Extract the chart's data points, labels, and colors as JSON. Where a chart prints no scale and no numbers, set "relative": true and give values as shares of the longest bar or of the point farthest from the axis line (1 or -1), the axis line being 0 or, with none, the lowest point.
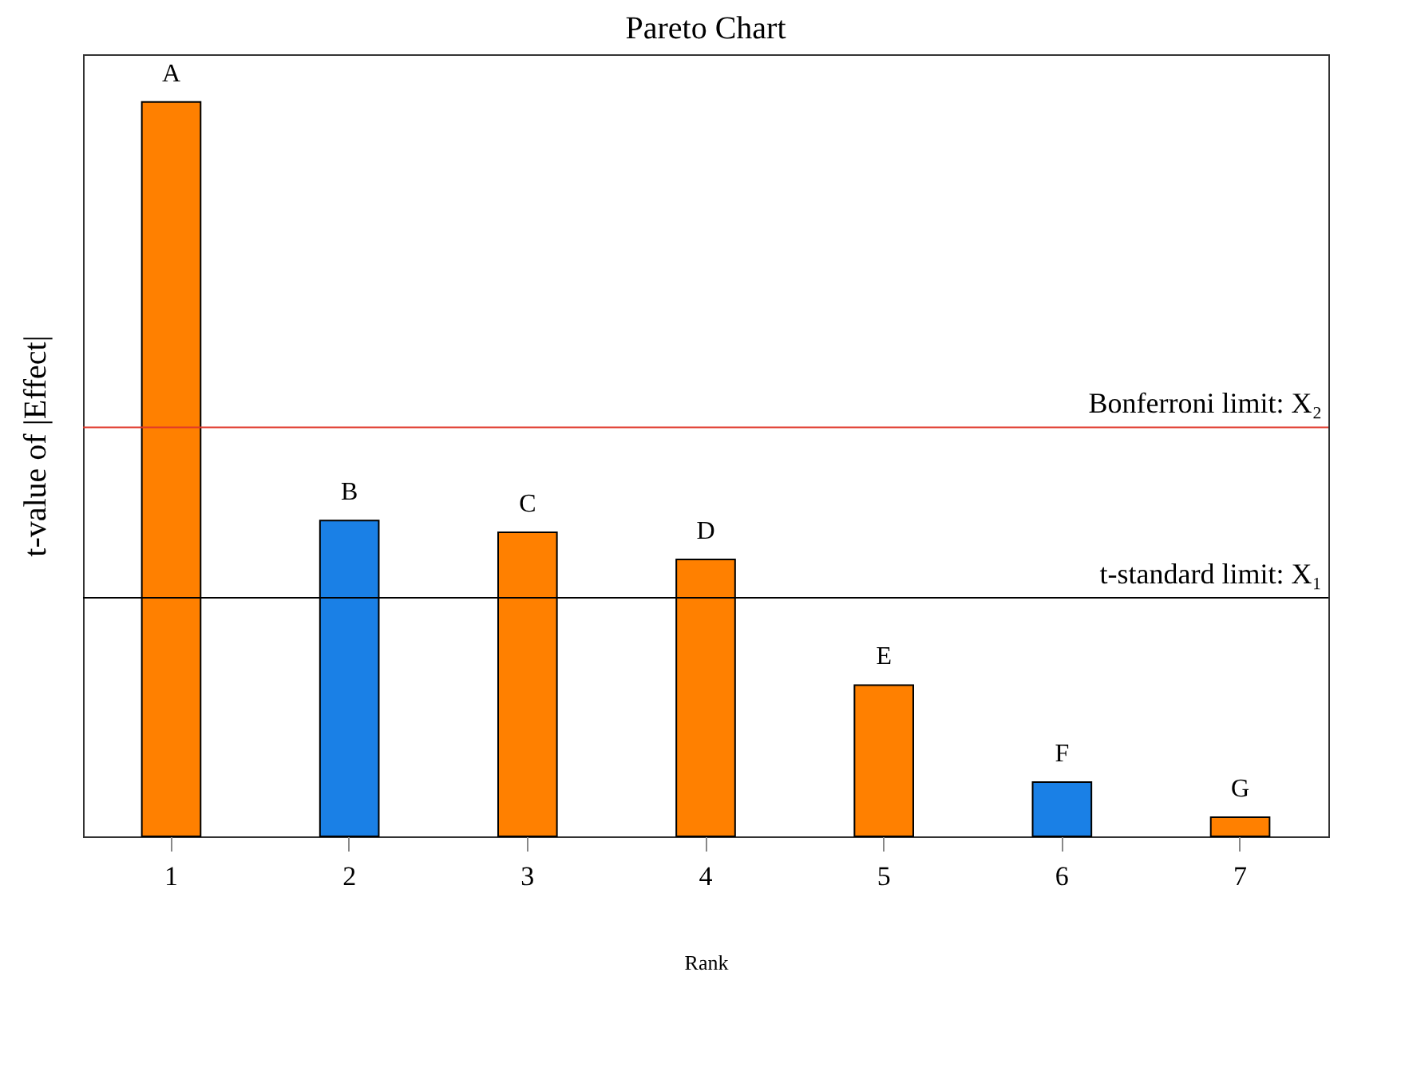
{
  "chart_data": {
    "type": "bar",
    "title": "Pareto Chart",
    "xlabel": "Rank",
    "ylabel": "t-value of |Effect|",
    "relative": true,
    "categories": [
      "1",
      "2",
      "3",
      "4",
      "5",
      "6",
      "7"
    ],
    "values": [
      1,
      0.43,
      0.414,
      0.377,
      0.206,
      0.074,
      0.026
    ],
    "colors": [
      "#ff8000",
      "#1a80e6",
      "#ff8000",
      "#ff8000",
      "#ff8000",
      "#1a80e6",
      "#ff8000"
    ],
    "annotations": [
      {
        "text": "A",
        "x": "1",
        "y": 1
      },
      {
        "text": "B",
        "x": "2",
        "y": 0.43
      },
      {
        "text": "C",
        "x": "3",
        "y": 0.414
      },
      {
        "text": "D",
        "x": "4",
        "y": 0.377
      },
      {
        "text": "E",
        "x": "5",
        "y": 0.206
      },
      {
        "text": "F",
        "x": "6",
        "y": 0.074
      },
      {
        "text": "G",
        "x": "7",
        "y": 0.026
      }
    ],
    "ref_lines": [
      {
        "axis": "y",
        "value": 0.557,
        "label": "Bonferroni limit: X₂",
        "color": "#e0382b"
      },
      {
        "axis": "y",
        "value": 0.325,
        "label": "t-standard limit: X₁",
        "color": "#000000"
      }
    ],
    "grid": false,
    "legend": false
  }
}
